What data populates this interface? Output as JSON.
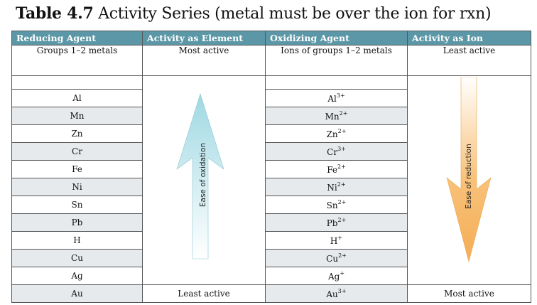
{
  "title": {
    "number": "Table 4.7",
    "text": "Activity Series (metal must be over the ion for rxn)"
  },
  "headers": [
    "Reducing Agent",
    "Activity as Element",
    "Oxidizing Agent",
    "Activity as Ion"
  ],
  "subheader": {
    "agent": "Groups 1–2 metals",
    "element_activity": "Most active",
    "ion": "Ions of groups 1–2 metals",
    "ion_activity": "Least active"
  },
  "rows": [
    {
      "metal": "Al",
      "ion": "Al",
      "charge": "3+"
    },
    {
      "metal": "Mn",
      "ion": "Mn",
      "charge": "2+"
    },
    {
      "metal": "Zn",
      "ion": "Zn",
      "charge": "2+"
    },
    {
      "metal": "Cr",
      "ion": "Cr",
      "charge": "3+"
    },
    {
      "metal": "Fe",
      "ion": "Fe",
      "charge": "2+"
    },
    {
      "metal": "Ni",
      "ion": "Ni",
      "charge": "2+"
    },
    {
      "metal": "Sn",
      "ion": "Sn",
      "charge": "2+"
    },
    {
      "metal": "Pb",
      "ion": "Pb",
      "charge": "2+"
    },
    {
      "metal": "H",
      "ion": "H",
      "charge": "+"
    },
    {
      "metal": "Cu",
      "ion": "Cu",
      "charge": "2+"
    },
    {
      "metal": "Ag",
      "ion": "Ag",
      "charge": "+"
    }
  ],
  "last_row": {
    "metal": "Au",
    "element_activity": "Least active",
    "ion": "Au",
    "charge": "3+",
    "ion_activity": "Most active"
  },
  "arrows": {
    "up_label": "Ease of oxidation",
    "down_label": "Ease of reduction",
    "up_color": "#bfe6ee",
    "down_color": "#f7c27a"
  },
  "colors": {
    "header_bg": "#5b97a6",
    "row_shade": "#e6eaec"
  }
}
